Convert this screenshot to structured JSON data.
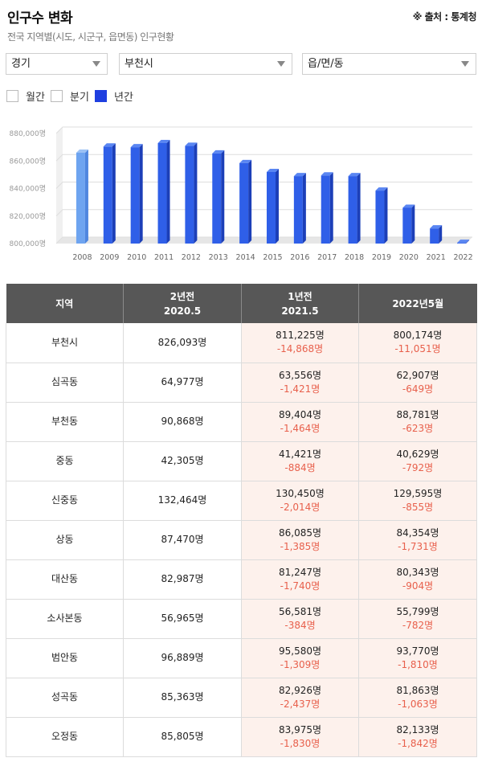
{
  "header": {
    "title": "인구수 변화",
    "source": "※ 출처 : 통계청",
    "subtitle": "전국 지역별(시도, 시군구, 읍면동) 인구현황"
  },
  "filters": {
    "province": "경기",
    "city": "부천시",
    "town": "읍/면/동"
  },
  "period": {
    "options": [
      "월간",
      "분기",
      "년간"
    ],
    "selected": "년간"
  },
  "colors": {
    "bar": "#2f5fe8",
    "bar_highlight": "#6ea4f0",
    "increase_decrease": "#e8604c",
    "header_bg": "#575757",
    "highlight_bg": "#fdf1ec"
  },
  "chart_data": {
    "type": "bar",
    "categories": [
      "2008",
      "2009",
      "2010",
      "2011",
      "2012",
      "2013",
      "2014",
      "2015",
      "2016",
      "2017",
      "2018",
      "2019",
      "2020",
      "2021",
      "2022"
    ],
    "values": [
      866000,
      870500,
      870000,
      873000,
      871000,
      865500,
      858500,
      852000,
      849000,
      849500,
      849000,
      838500,
      826000,
      811000,
      800500
    ],
    "ylim": [
      800000,
      880000
    ],
    "yticks": [
      "800,000명",
      "820,000명",
      "840,000명",
      "860,000명",
      "880,000명"
    ],
    "grid": true
  },
  "table": {
    "headers": [
      {
        "line1": "지역",
        "line2": ""
      },
      {
        "line1": "2년전",
        "line2": "2020.5"
      },
      {
        "line1": "1년전",
        "line2": "2021.5"
      },
      {
        "line1": "2022년5월",
        "line2": ""
      }
    ],
    "rows": [
      {
        "region": "부천시",
        "y2": "826,093명",
        "y1": "811,225명",
        "y1_chg": "-14,868명",
        "now": "800,174명",
        "now_chg": "-11,051명"
      },
      {
        "region": "심곡동",
        "y2": "64,977명",
        "y1": "63,556명",
        "y1_chg": "-1,421명",
        "now": "62,907명",
        "now_chg": "-649명"
      },
      {
        "region": "부천동",
        "y2": "90,868명",
        "y1": "89,404명",
        "y1_chg": "-1,464명",
        "now": "88,781명",
        "now_chg": "-623명"
      },
      {
        "region": "중동",
        "y2": "42,305명",
        "y1": "41,421명",
        "y1_chg": "-884명",
        "now": "40,629명",
        "now_chg": "-792명"
      },
      {
        "region": "신중동",
        "y2": "132,464명",
        "y1": "130,450명",
        "y1_chg": "-2,014명",
        "now": "129,595명",
        "now_chg": "-855명"
      },
      {
        "region": "상동",
        "y2": "87,470명",
        "y1": "86,085명",
        "y1_chg": "-1,385명",
        "now": "84,354명",
        "now_chg": "-1,731명"
      },
      {
        "region": "대산동",
        "y2": "82,987명",
        "y1": "81,247명",
        "y1_chg": "-1,740명",
        "now": "80,343명",
        "now_chg": "-904명"
      },
      {
        "region": "소사본동",
        "y2": "56,965명",
        "y1": "56,581명",
        "y1_chg": "-384명",
        "now": "55,799명",
        "now_chg": "-782명"
      },
      {
        "region": "범안동",
        "y2": "96,889명",
        "y1": "95,580명",
        "y1_chg": "-1,309명",
        "now": "93,770명",
        "now_chg": "-1,810명"
      },
      {
        "region": "성곡동",
        "y2": "85,363명",
        "y1": "82,926명",
        "y1_chg": "-2,437명",
        "now": "81,863명",
        "now_chg": "-1,063명"
      },
      {
        "region": "오정동",
        "y2": "85,805명",
        "y1": "83,975명",
        "y1_chg": "-1,830명",
        "now": "82,133명",
        "now_chg": "-1,842명"
      }
    ]
  }
}
